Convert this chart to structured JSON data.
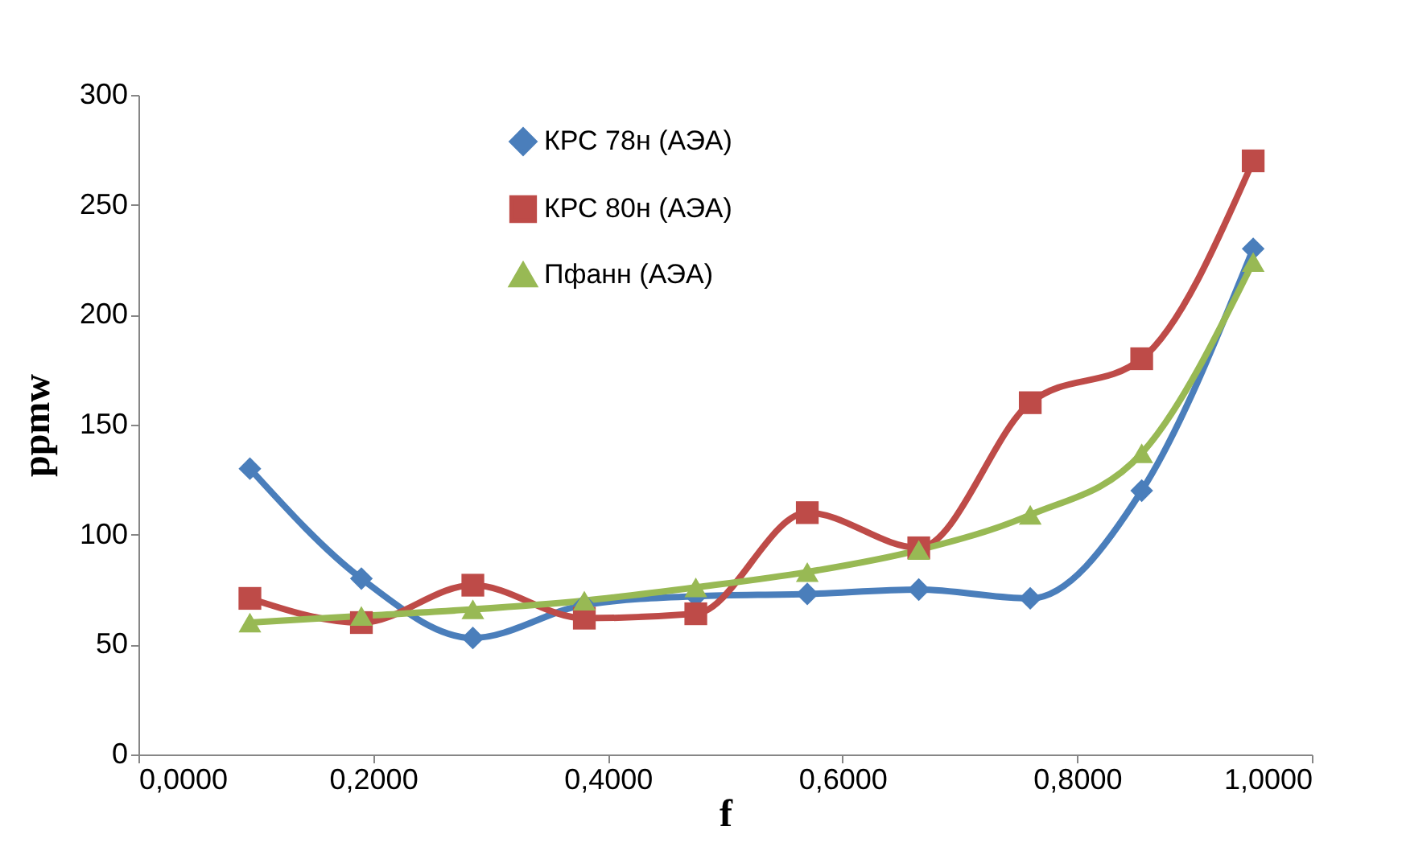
{
  "chart_data": {
    "type": "line",
    "xlabel": "f",
    "ylabel": "ppmw",
    "x": [
      0.095,
      0.19,
      0.285,
      0.38,
      0.475,
      0.57,
      0.665,
      0.76,
      0.855,
      0.95
    ],
    "series": [
      {
        "name": "КРС 78н (АЭА)",
        "color": "#4a7ebb",
        "marker": "diamond",
        "values": [
          130,
          80,
          53,
          68,
          72,
          73,
          75,
          71,
          120,
          230
        ]
      },
      {
        "name": "КРС 80н (АЭА)",
        "color": "#be4b48",
        "marker": "square",
        "values": [
          71,
          60,
          77,
          62,
          64,
          110,
          94,
          160,
          180,
          270
        ]
      },
      {
        "name": "Пфанн (АЭА)",
        "color": "#98b954",
        "marker": "triangle",
        "values": [
          60,
          63,
          66,
          70,
          76,
          83,
          93,
          109,
          137,
          224
        ]
      }
    ],
    "xlim": [
      0,
      1
    ],
    "xticks": [
      {
        "value": 0,
        "label": "0,0000"
      },
      {
        "value": 0.2,
        "label": "0,2000"
      },
      {
        "value": 0.4,
        "label": "0,4000"
      },
      {
        "value": 0.6,
        "label": "0,6000"
      },
      {
        "value": 0.8,
        "label": "0,8000"
      },
      {
        "value": 1,
        "label": "1,0000"
      }
    ],
    "ylim": [
      0,
      300
    ],
    "yticks": [
      0,
      50,
      100,
      150,
      200,
      250,
      300
    ],
    "legend": "top",
    "grid": false
  }
}
